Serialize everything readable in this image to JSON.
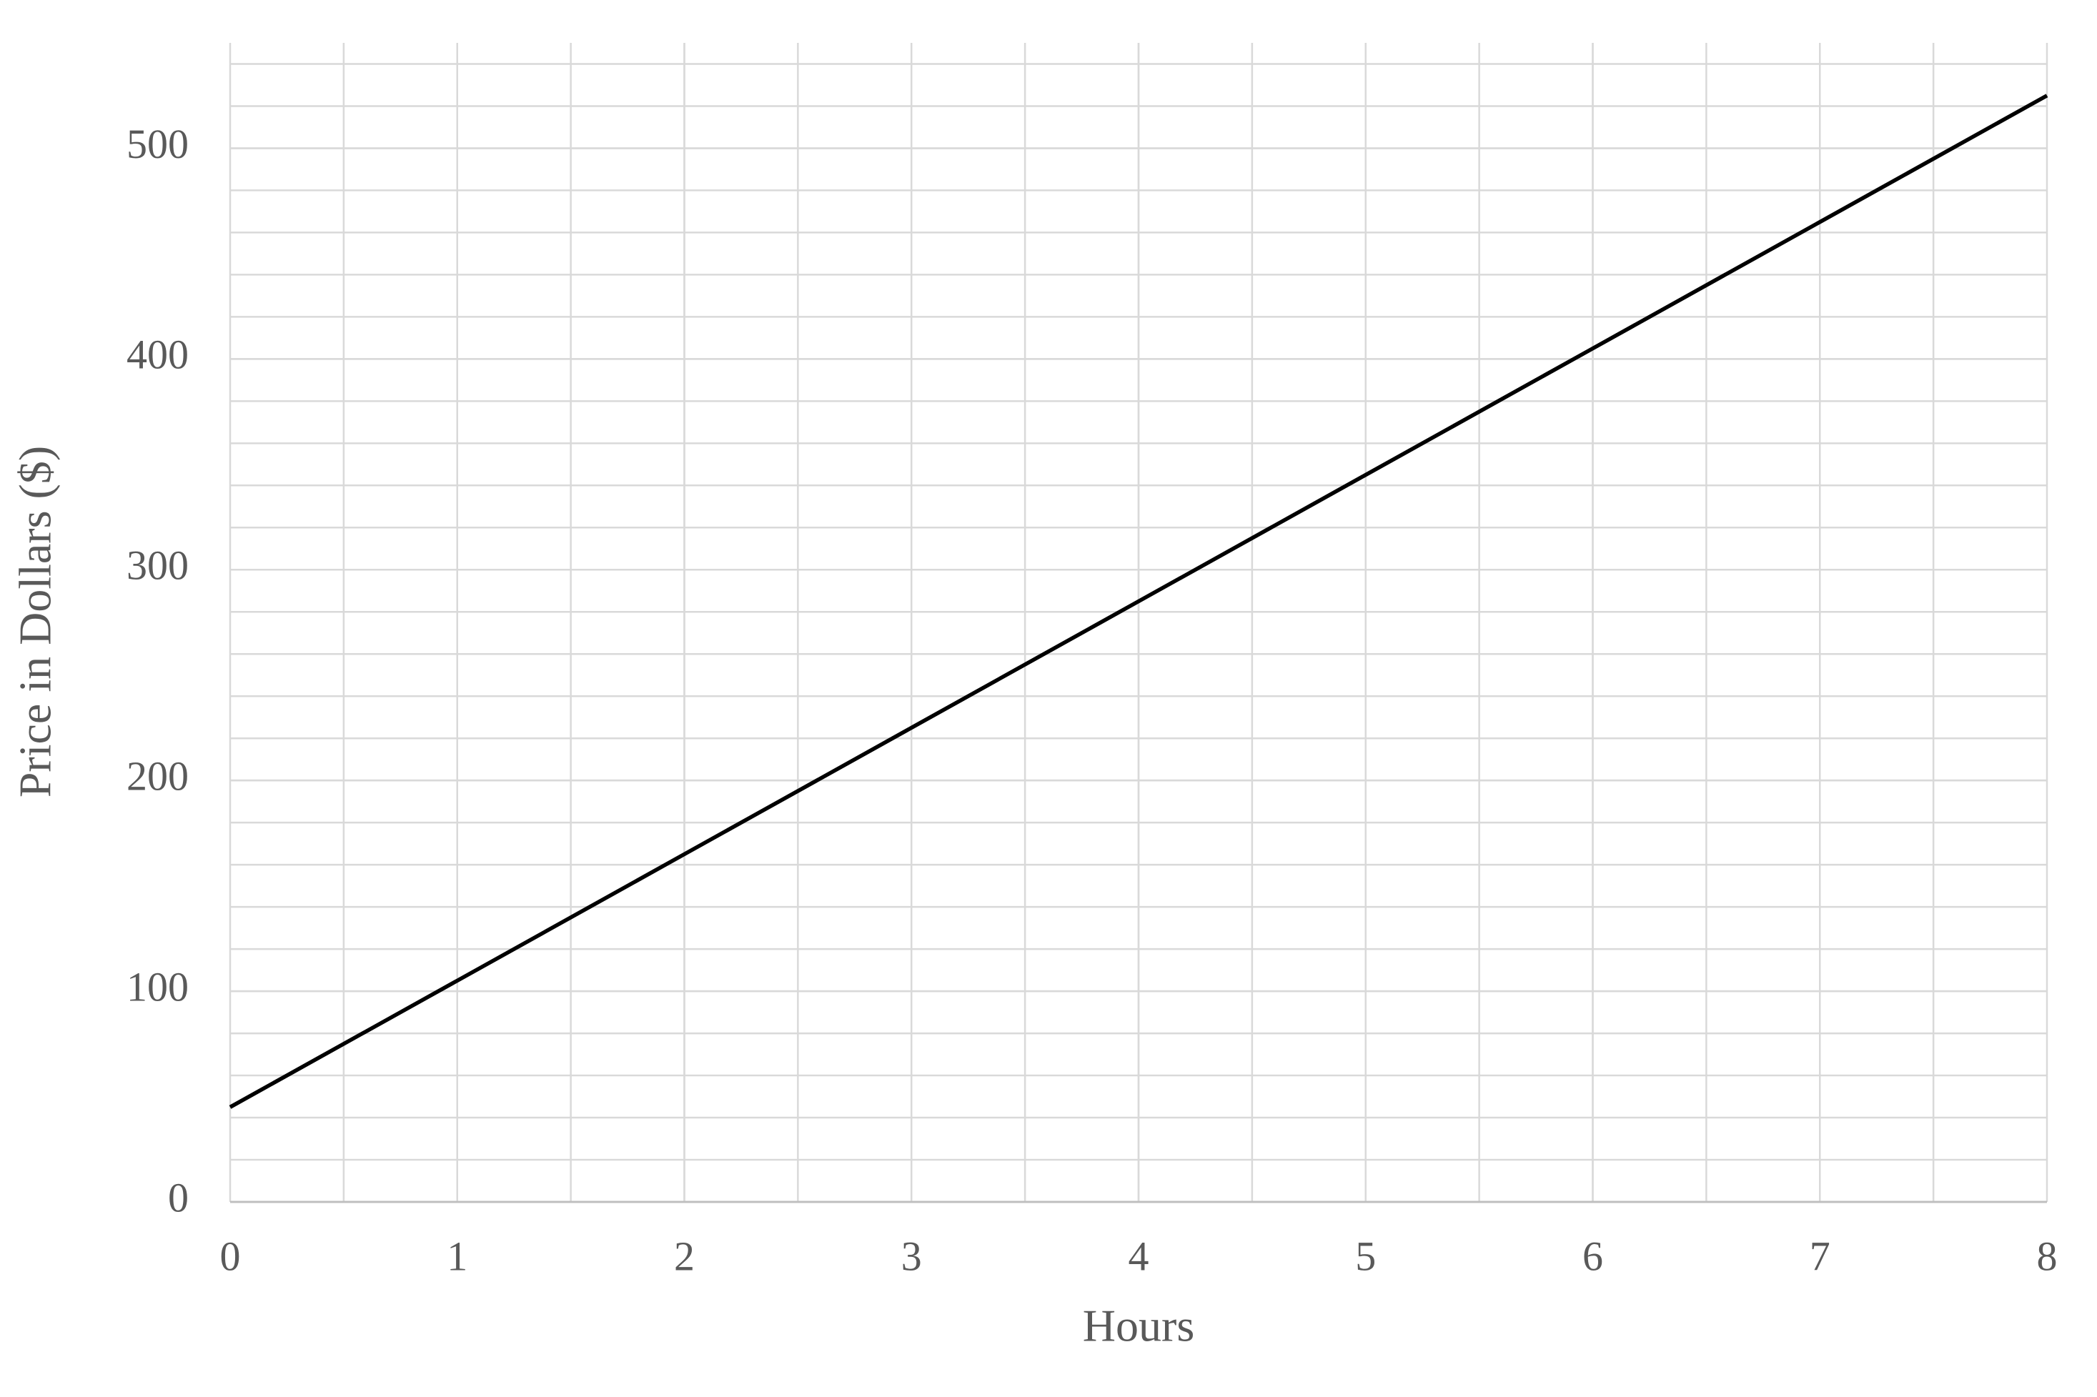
{
  "chart_data": {
    "type": "line",
    "x_label": "Hours",
    "y_label": "Price in Dollars  ($)",
    "x": [
      0,
      1,
      2,
      3,
      4,
      5,
      6,
      7,
      8
    ],
    "series": [
      {
        "color": "#000000",
        "values": [
          45,
          105,
          165,
          225,
          285,
          345,
          405,
          465,
          525
        ]
      }
    ],
    "xlim": [
      0,
      8
    ],
    "xticks": [
      0,
      1,
      2,
      3,
      4,
      5,
      6,
      7,
      8
    ],
    "ylim": [
      0,
      550
    ],
    "yticks": [
      0,
      100,
      200,
      300,
      400,
      500
    ],
    "grid": true,
    "minor_grid": {
      "x": 0.5,
      "y": 20
    }
  }
}
